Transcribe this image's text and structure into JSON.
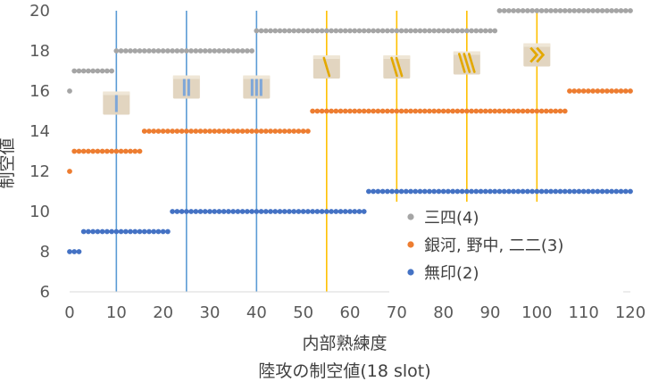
{
  "chart_data": {
    "type": "scatter",
    "title": "陸攻の制空値(18 slot)",
    "xlabel": "内部熟練度",
    "ylabel": "制空値",
    "xlim": [
      0,
      120
    ],
    "ylim": [
      6,
      20
    ],
    "x_ticks": [
      0,
      10,
      20,
      30,
      40,
      50,
      60,
      70,
      80,
      90,
      100,
      110,
      120
    ],
    "y_ticks": [
      6,
      8,
      10,
      12,
      14,
      16,
      18,
      20
    ],
    "grid": false,
    "legend_position": "bottom-right",
    "colors": {
      "series_0": "#a5a5a5",
      "series_1": "#ed7d31",
      "series_2": "#4472c4",
      "blue_line": "#5b9bd5",
      "yellow_line": "#ffc000",
      "badge_bg": "#e2d5c0"
    },
    "series": [
      {
        "name": "三四(4)",
        "segments": [
          {
            "from": 0,
            "to": 0,
            "y": 16
          },
          {
            "from": 1,
            "to": 9,
            "y": 17
          },
          {
            "from": 10,
            "to": 39,
            "y": 18
          },
          {
            "from": 40,
            "to": 91,
            "y": 19
          },
          {
            "from": 92,
            "to": 120,
            "y": 20
          }
        ]
      },
      {
        "name": "銀河, 野中, 二二(3)",
        "segments": [
          {
            "from": 0,
            "to": 0,
            "y": 12
          },
          {
            "from": 1,
            "to": 15,
            "y": 13
          },
          {
            "from": 16,
            "to": 51,
            "y": 14
          },
          {
            "from": 52,
            "to": 106,
            "y": 15
          },
          {
            "from": 107,
            "to": 120,
            "y": 16
          }
        ]
      },
      {
        "name": "無印(2)",
        "segments": [
          {
            "from": 0,
            "to": 2,
            "y": 8
          },
          {
            "from": 3,
            "to": 21,
            "y": 9
          },
          {
            "from": 22,
            "to": 63,
            "y": 10
          },
          {
            "from": 64,
            "to": 120,
            "y": 11
          }
        ]
      }
    ],
    "vertical_lines": [
      {
        "x": 10,
        "color": "blue",
        "badge": "bar-1",
        "badge_y": 15.4
      },
      {
        "x": 25,
        "color": "blue",
        "badge": "bar-2",
        "badge_y": 16.2
      },
      {
        "x": 40,
        "color": "blue",
        "badge": "bar-3",
        "badge_y": 16.2
      },
      {
        "x": 55,
        "color": "yellow",
        "badge": "slash-1",
        "badge_y": 17.2
      },
      {
        "x": 70,
        "color": "yellow",
        "badge": "slash-2",
        "badge_y": 17.2
      },
      {
        "x": 85,
        "color": "yellow",
        "badge": "slash-3",
        "badge_y": 17.4
      },
      {
        "x": 100,
        "color": "yellow",
        "badge": "chevron-2",
        "badge_y": 17.8
      }
    ]
  }
}
